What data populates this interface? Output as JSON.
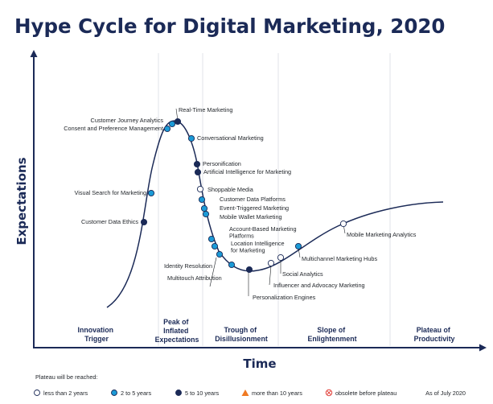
{
  "title": "Hype Cycle for Digital Marketing, 2020",
  "axes": {
    "y_label": "Expectations",
    "x_label": "Time"
  },
  "phases": [
    {
      "key": "innovation",
      "lines": [
        "Innovation",
        "Trigger"
      ]
    },
    {
      "key": "peak",
      "lines": [
        "Peak of",
        "Inflated",
        "Expectations"
      ]
    },
    {
      "key": "trough",
      "lines": [
        "Trough of",
        "Disillusionment"
      ]
    },
    {
      "key": "slope",
      "lines": [
        "Slope of",
        "Enlightenment"
      ]
    },
    {
      "key": "plateau",
      "lines": [
        "Plateau of",
        "Productivity"
      ]
    }
  ],
  "colors": {
    "navy": "#1b2a57",
    "less_than_2": "#ffffff",
    "two_to_five": "#1b9ad6",
    "five_to_ten": "#1b2a57",
    "more_than_10": "#f07a23",
    "obsolete": "#e2423c",
    "grid": "#e1e3e8"
  },
  "technologies": [
    {
      "name": "Customer Journey Analytics",
      "phase": "peak",
      "plateau": "2 to 5 years"
    },
    {
      "name": "Consent and Preference Management",
      "phase": "peak",
      "plateau": "2 to 5 years"
    },
    {
      "name": "Real-Time Marketing",
      "phase": "peak",
      "plateau": "5 to 10 years"
    },
    {
      "name": "Conversational Marketing",
      "phase": "peak",
      "plateau": "2 to 5 years"
    },
    {
      "name": "Personification",
      "phase": "trough",
      "plateau": "5 to 10 years"
    },
    {
      "name": "Artificial Intelligence for Marketing",
      "phase": "trough",
      "plateau": "5 to 10 years"
    },
    {
      "name": "Shoppable Media",
      "phase": "trough",
      "plateau": "less than 2 years"
    },
    {
      "name": "Customer Data Platforms",
      "phase": "trough",
      "plateau": "2 to 5 years"
    },
    {
      "name": "Event-Triggered Marketing",
      "phase": "trough",
      "plateau": "2 to 5 years"
    },
    {
      "name": "Mobile Wallet Marketing",
      "phase": "trough",
      "plateau": "2 to 5 years"
    },
    {
      "name": "Account-Based Marketing Platforms",
      "phase": "trough",
      "plateau": "2 to 5 years"
    },
    {
      "name": "Location Intelligence for Marketing",
      "phase": "trough",
      "plateau": "2 to 5 years"
    },
    {
      "name": "Identity Resolution",
      "phase": "trough",
      "plateau": "2 to 5 years"
    },
    {
      "name": "Multitouch Attribution",
      "phase": "trough",
      "plateau": "2 to 5 years"
    },
    {
      "name": "Personalization Engines",
      "phase": "trough",
      "plateau": "5 to 10 years"
    },
    {
      "name": "Influencer and Advocacy Marketing",
      "phase": "slope",
      "plateau": "less than 2 years"
    },
    {
      "name": "Social Analytics",
      "phase": "slope",
      "plateau": "less than 2 years"
    },
    {
      "name": "Multichannel Marketing Hubs",
      "phase": "slope",
      "plateau": "2 to 5 years"
    },
    {
      "name": "Mobile Marketing Analytics",
      "phase": "slope",
      "plateau": "less than 2 years"
    },
    {
      "name": "Visual Search for Marketing",
      "phase": "innovation",
      "plateau": "2 to 5 years"
    },
    {
      "name": "Customer Data Ethics",
      "phase": "innovation",
      "plateau": "5 to 10 years"
    }
  ],
  "legend": {
    "heading": "Plateau will be reached:",
    "items": [
      {
        "key": "lt2",
        "label": "less than 2 years"
      },
      {
        "key": "2to5",
        "label": "2 to 5 years"
      },
      {
        "key": "5to10",
        "label": "5 to 10 years"
      },
      {
        "key": "gt10",
        "label": "more than 10 years"
      },
      {
        "key": "obsolete",
        "label": "obsolete before plateau"
      }
    ],
    "as_of": "As of July 2020"
  }
}
